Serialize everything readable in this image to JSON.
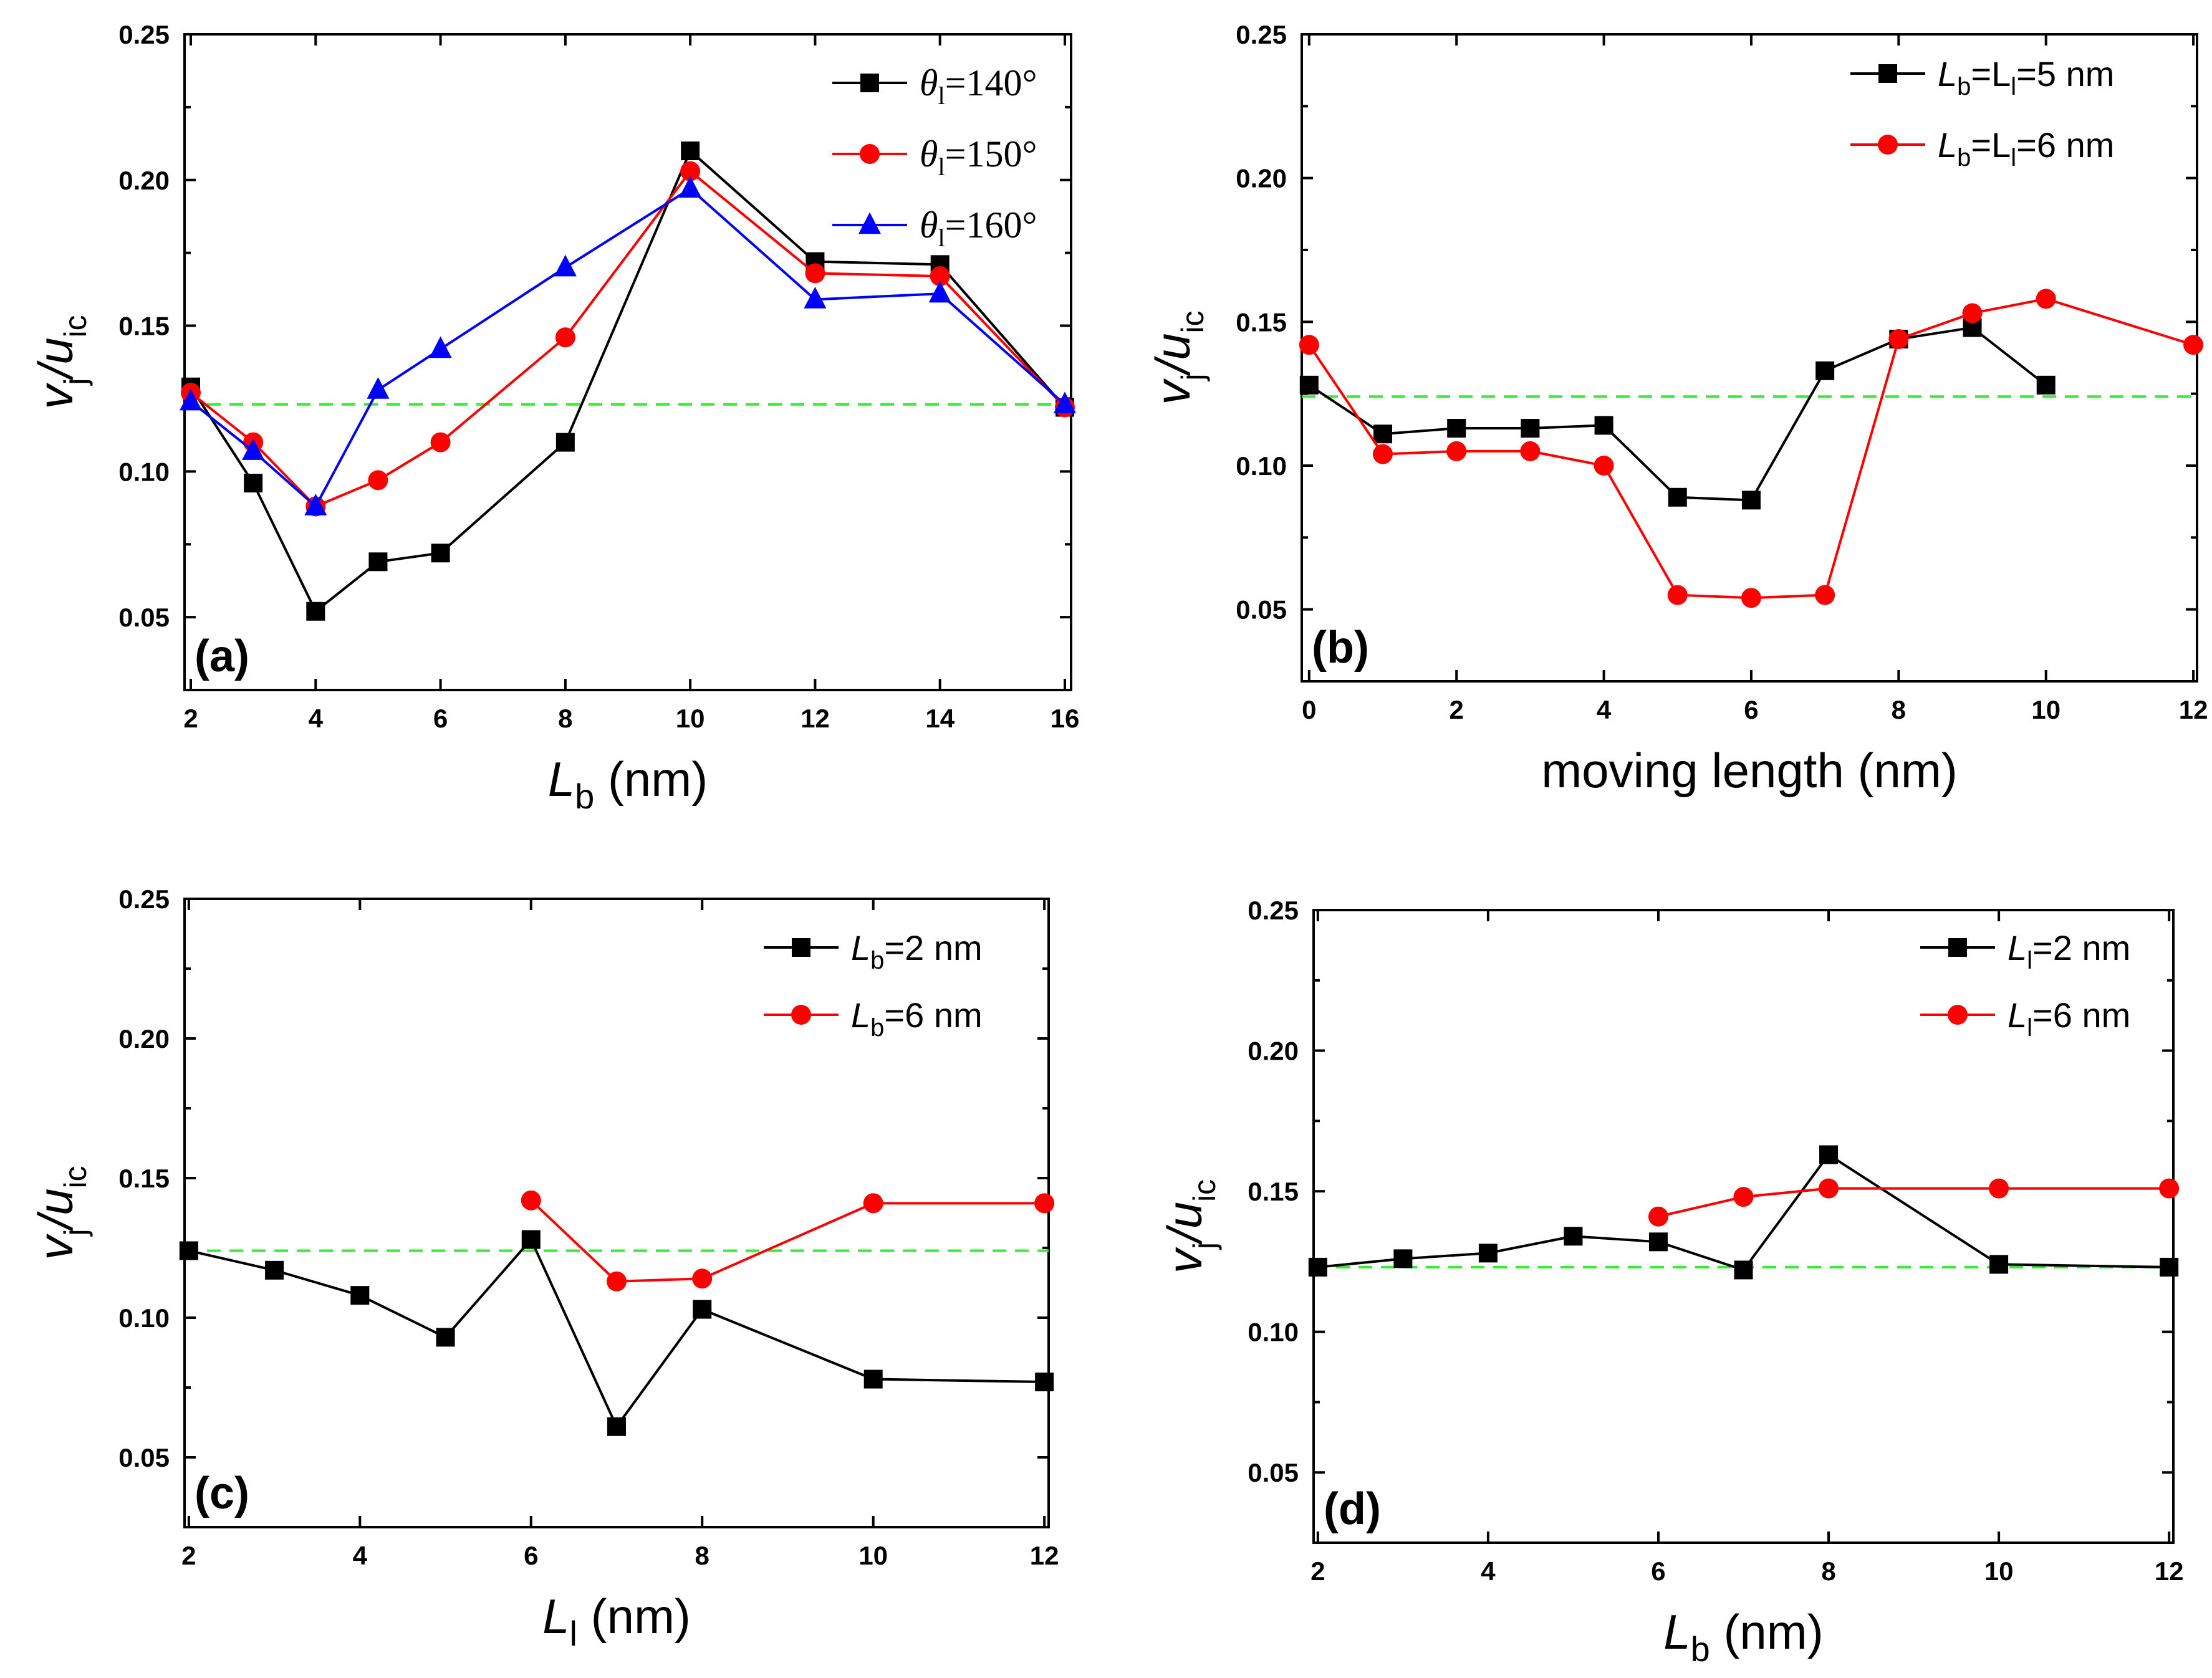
{
  "chart_data": [
    {
      "id": "a",
      "type": "line",
      "panel_label": "(a)",
      "xlabel": "L",
      "xlabel_sub": "b",
      "xlabel_unit": " (nm)",
      "ylabel": "v",
      "ylabel_sub1": "j",
      "ylabel_mid": "/u",
      "ylabel_sub2": "ic",
      "xlim": [
        1.9,
        16.1
      ],
      "ylim": [
        0.025,
        0.25
      ],
      "xticks": [
        2,
        4,
        6,
        8,
        10,
        12,
        14,
        16
      ],
      "xtick_labels": [
        "2",
        "4",
        "6",
        "8",
        "10",
        "12",
        "14",
        "16"
      ],
      "yticks": [
        0.05,
        0.1,
        0.15,
        0.2,
        0.25
      ],
      "ytick_labels": [
        "0.05",
        "0.10",
        "0.15",
        "0.20",
        "0.25"
      ],
      "reference_line": 0.123,
      "legend_style": "serif",
      "series": [
        {
          "name": "θ",
          "name_sub": "l",
          "name_suffix": "=140°",
          "color": "#000000",
          "marker": "square",
          "x": [
            2,
            3,
            4,
            5,
            6,
            8,
            10,
            12,
            14,
            16
          ],
          "y": [
            0.129,
            0.096,
            0.052,
            0.069,
            0.072,
            0.11,
            0.21,
            0.172,
            0.171,
            0.122
          ]
        },
        {
          "name": "θ",
          "name_sub": "l",
          "name_suffix": "=150°",
          "color": "#ff0000",
          "marker": "circle",
          "x": [
            2,
            3,
            4,
            5,
            6,
            8,
            10,
            12,
            14,
            16
          ],
          "y": [
            0.127,
            0.11,
            0.088,
            0.097,
            0.11,
            0.146,
            0.203,
            0.168,
            0.167,
            0.122
          ]
        },
        {
          "name": "θ",
          "name_sub": "l",
          "name_suffix": "=160°",
          "color": "#0000ff",
          "marker": "triangle",
          "x": [
            2,
            3,
            4,
            5,
            6,
            8,
            10,
            12,
            14,
            16
          ],
          "y": [
            0.124,
            0.107,
            0.088,
            0.128,
            0.142,
            0.17,
            0.197,
            0.159,
            0.161,
            0.123
          ]
        }
      ]
    },
    {
      "id": "b",
      "type": "line",
      "panel_label": "(b)",
      "xlabel": "moving length (nm)",
      "xlabel_sub": "",
      "xlabel_unit": "",
      "ylabel": "v",
      "ylabel_sub1": "j",
      "ylabel_mid": "/u",
      "ylabel_sub2": "ic",
      "xlim": [
        -0.1,
        12.05
      ],
      "ylim": [
        0.025,
        0.25
      ],
      "xticks": [
        0,
        2,
        4,
        6,
        8,
        10,
        12
      ],
      "xtick_labels": [
        "0",
        "2",
        "4",
        "6",
        "8",
        "10",
        "12"
      ],
      "yticks": [
        0.05,
        0.1,
        0.15,
        0.2,
        0.25
      ],
      "ytick_labels": [
        "0.05",
        "0.10",
        "0.15",
        "0.20",
        "0.25"
      ],
      "reference_line": 0.124,
      "legend_style": "sans-double",
      "series": [
        {
          "name": "L",
          "name_sub": "b",
          "name_mid": "=L",
          "name_sub2": "l",
          "name_suffix": "=5 nm",
          "color": "#000000",
          "marker": "square",
          "x": [
            0,
            1,
            2,
            3,
            4,
            5,
            6,
            7,
            8,
            9,
            10
          ],
          "y": [
            0.128,
            0.111,
            0.113,
            0.113,
            0.114,
            0.089,
            0.088,
            0.133,
            0.144,
            0.148,
            0.128
          ]
        },
        {
          "name": "L",
          "name_sub": "b",
          "name_mid": "=L",
          "name_sub2": "l",
          "name_suffix": "=6 nm",
          "color": "#ff0000",
          "marker": "circle",
          "x": [
            0,
            1,
            2,
            3,
            4,
            5,
            6,
            7,
            8,
            9,
            10,
            12
          ],
          "y": [
            0.142,
            0.104,
            0.105,
            0.105,
            0.1,
            0.055,
            0.054,
            0.055,
            0.144,
            0.153,
            0.158,
            0.142
          ]
        }
      ]
    },
    {
      "id": "c",
      "type": "line",
      "panel_label": "(c)",
      "xlabel": "L",
      "xlabel_sub": "l",
      "xlabel_unit": " (nm)",
      "ylabel": "v",
      "ylabel_sub1": "j",
      "ylabel_mid": "/u",
      "ylabel_sub2": "ic",
      "xlim": [
        1.95,
        12.05
      ],
      "ylim": [
        0.025,
        0.25
      ],
      "xticks": [
        2,
        4,
        6,
        8,
        10,
        12
      ],
      "xtick_labels": [
        "2",
        "4",
        "6",
        "8",
        "10",
        "12"
      ],
      "yticks": [
        0.05,
        0.1,
        0.15,
        0.2,
        0.25
      ],
      "ytick_labels": [
        "0.05",
        "0.10",
        "0.15",
        "0.20",
        "0.25"
      ],
      "reference_line": 0.124,
      "legend_style": "sans",
      "series": [
        {
          "name": "L",
          "name_sub": "b",
          "name_suffix": "=2 nm",
          "color": "#000000",
          "marker": "square",
          "x": [
            2,
            3,
            4,
            5,
            6,
            7,
            8,
            10,
            12
          ],
          "y": [
            0.124,
            0.117,
            0.108,
            0.093,
            0.128,
            0.061,
            0.103,
            0.078,
            0.077
          ]
        },
        {
          "name": "L",
          "name_sub": "b",
          "name_suffix": "=6 nm",
          "color": "#ff0000",
          "marker": "circle",
          "x": [
            6,
            7,
            8,
            10,
            12
          ],
          "y": [
            0.142,
            0.113,
            0.114,
            0.141,
            0.141
          ]
        }
      ]
    },
    {
      "id": "d",
      "type": "line",
      "panel_label": "(d)",
      "xlabel": "L",
      "xlabel_sub": "b",
      "xlabel_unit": " (nm)",
      "ylabel": "v",
      "ylabel_sub1": "j",
      "ylabel_mid": "/u",
      "ylabel_sub2": "ic",
      "xlim": [
        1.95,
        12.05
      ],
      "ylim": [
        0.025,
        0.25
      ],
      "xticks": [
        2,
        4,
        6,
        8,
        10,
        12
      ],
      "xtick_labels": [
        "2",
        "4",
        "6",
        "8",
        "10",
        "12"
      ],
      "yticks": [
        0.05,
        0.1,
        0.15,
        0.2,
        0.25
      ],
      "ytick_labels": [
        "0.05",
        "0.10",
        "0.15",
        "0.20",
        "0.25"
      ],
      "reference_line": 0.123,
      "legend_style": "sans",
      "series": [
        {
          "name": "L",
          "name_sub": "l",
          "name_suffix": "=2 nm",
          "color": "#000000",
          "marker": "square",
          "x": [
            2,
            3,
            4,
            5,
            6,
            7,
            8,
            10,
            12
          ],
          "y": [
            0.123,
            0.126,
            0.128,
            0.134,
            0.132,
            0.122,
            0.163,
            0.124,
            0.123
          ]
        },
        {
          "name": "L",
          "name_sub": "l",
          "name_suffix": "=6 nm",
          "color": "#ff0000",
          "marker": "circle",
          "x": [
            6,
            7,
            8,
            10,
            12
          ],
          "y": [
            0.141,
            0.148,
            0.151,
            0.151,
            0.151
          ]
        }
      ]
    }
  ]
}
